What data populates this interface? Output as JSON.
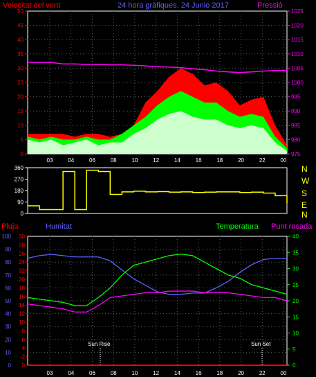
{
  "header": {
    "title_left": "Velocitat del vent",
    "title_center": "24 hora gràfiques. 24 Junio 2017",
    "title_right": "Pressió"
  },
  "panel2_labels": {
    "nwsen": [
      "N",
      "W",
      "S",
      "E",
      "N"
    ]
  },
  "panel3_header": {
    "pluja": "Pluja",
    "humitat": "Humitat",
    "temperatura": "Temperatura",
    "punt_rosada": "Punt rosada"
  },
  "sun": {
    "rise_label": "Sun Rise",
    "set_label": "Sun Set"
  },
  "colors": {
    "red": "#ff0000",
    "blue": "#6060ff",
    "magenta": "#ff00ff",
    "green": "#00ff00",
    "yellow": "#ffff00",
    "pale": "#ccffcc",
    "axis": "#ffffff",
    "grid": "#606060"
  },
  "chart_data": [
    {
      "type": "area",
      "name": "wind-pressure",
      "title": "24 hora gràfiques. 24 Junio 2017",
      "ylabel_left": "Velocitat del vent",
      "ylabel_right": "Pressió",
      "ylim_left": [
        0,
        50
      ],
      "ylim_right": [
        975,
        1025
      ],
      "y_ticks_left": [
        "0",
        "5",
        "10",
        "15",
        "20",
        "25",
        "30",
        "35",
        "40",
        "45",
        "50"
      ],
      "y_ticks_right": [
        "975",
        "980",
        "985",
        "990",
        "995",
        "1000",
        "1005",
        "1010",
        "1015",
        "1020",
        "1025"
      ],
      "x_ticks": [
        "03",
        "04",
        "06",
        "08",
        "10",
        "12",
        "14",
        "16",
        "18",
        "20",
        "22",
        "00"
      ],
      "grid": true,
      "x": [
        "02",
        "03",
        "04",
        "05",
        "06",
        "07",
        "08",
        "09",
        "10",
        "11",
        "12",
        "13",
        "14",
        "15",
        "16",
        "17",
        "18",
        "19",
        "20",
        "21",
        "22",
        "23",
        "00"
      ],
      "series": [
        {
          "name": "gust",
          "color": "#ff0000",
          "values": [
            7,
            7,
            7,
            7,
            6,
            7,
            7,
            6,
            7,
            10,
            18,
            22,
            27,
            30,
            28,
            24,
            25,
            22,
            17,
            19,
            20,
            10,
            3
          ]
        },
        {
          "name": "average",
          "color": "#00ff00",
          "values": [
            6,
            5,
            6,
            5,
            5,
            6,
            5,
            5,
            7,
            10,
            13,
            17,
            20,
            22,
            20,
            18,
            18,
            15,
            13,
            14,
            13,
            6,
            2
          ]
        },
        {
          "name": "speed",
          "color": "#ccffcc",
          "values": [
            5,
            4,
            5,
            3,
            4,
            5,
            3,
            4,
            4,
            7,
            9,
            12,
            14,
            15,
            13,
            12,
            12,
            10,
            9,
            10,
            9,
            4,
            1
          ]
        },
        {
          "name": "pressure",
          "color": "#ff00ff",
          "values": [
            1007,
            1007,
            1007,
            1006.5,
            1006.5,
            1006.3,
            1006.3,
            1006.2,
            1006.2,
            1006.0,
            1005.8,
            1005.5,
            1005.4,
            1005.2,
            1004.8,
            1004.5,
            1004.0,
            1003.7,
            1003.5,
            1003.7,
            1004,
            1004.2,
            1004.2
          ]
        }
      ]
    },
    {
      "type": "line",
      "name": "wind-direction",
      "ylim": [
        0,
        360
      ],
      "y_ticks": [
        "0",
        "90",
        "180",
        "270",
        "360"
      ],
      "grid": false,
      "x": [
        "02",
        "03",
        "04",
        "05",
        "06",
        "07",
        "08",
        "09",
        "10",
        "11",
        "12",
        "13",
        "14",
        "15",
        "16",
        "17",
        "18",
        "19",
        "20",
        "21",
        "22",
        "23",
        "00"
      ],
      "series": [
        {
          "name": "direction",
          "color": "#ffff00",
          "values": [
            60,
            30,
            30,
            330,
            30,
            340,
            330,
            150,
            170,
            175,
            170,
            172,
            168,
            170,
            165,
            168,
            170,
            170,
            165,
            168,
            160,
            140,
            80
          ]
        }
      ]
    },
    {
      "type": "line",
      "name": "temp-humidity",
      "ylabel_left_outer": "Pluja",
      "ylabel_left_inner": "Humitat",
      "ylabel_right_inner": "Temperatura",
      "ylabel_right_outer": "Punt rosada",
      "ylim_humidity": [
        0,
        100
      ],
      "ylim_rain": [
        0,
        30
      ],
      "ylim_temp": [
        0,
        40
      ],
      "y_ticks_humidity": [
        "0",
        "10",
        "20",
        "30",
        "40",
        "50",
        "60",
        "70",
        "80",
        "90",
        "100"
      ],
      "y_ticks_rain": [
        "0",
        "2",
        "4",
        "6",
        "8",
        "10",
        "12",
        "14",
        "16",
        "18",
        "20",
        "22",
        "24",
        "26",
        "28",
        "30"
      ],
      "y_ticks_temp": [
        "0",
        "5",
        "10",
        "15",
        "20",
        "25",
        "30",
        "35",
        "40"
      ],
      "x_ticks": [
        "03",
        "04",
        "06",
        "08",
        "10",
        "12",
        "14",
        "16",
        "18",
        "20",
        "22",
        "00"
      ],
      "grid": true,
      "x": [
        "02",
        "03",
        "04",
        "05",
        "06",
        "07",
        "08",
        "09",
        "10",
        "11",
        "12",
        "13",
        "14",
        "15",
        "16",
        "17",
        "18",
        "19",
        "20",
        "21",
        "22",
        "23",
        "00"
      ],
      "series": [
        {
          "name": "humitat",
          "color": "#6060ff",
          "values": [
            83,
            85,
            86,
            85,
            84,
            84,
            84,
            81,
            74,
            67,
            62,
            57,
            55,
            55,
            56,
            56,
            60,
            65,
            72,
            78,
            82,
            83,
            83
          ]
        },
        {
          "name": "temperatura",
          "color": "#00ff00",
          "values": [
            21,
            20.5,
            20,
            19.5,
            18.5,
            18.5,
            21,
            24,
            28,
            31,
            32,
            33,
            34,
            34.5,
            34,
            32,
            30,
            28,
            27,
            25,
            24,
            23,
            22
          ]
        },
        {
          "name": "punt_rosada",
          "color": "#ff00ff",
          "values": [
            19,
            18.5,
            18,
            17.5,
            16.5,
            16.5,
            18.5,
            21,
            21.5,
            22,
            22.5,
            22.5,
            23,
            23,
            23,
            22.5,
            22.5,
            22.5,
            22,
            21.5,
            21,
            21,
            20
          ]
        },
        {
          "name": "pluja",
          "color": "#ff0000",
          "values": [
            0,
            0,
            0,
            0,
            0,
            0,
            0,
            0,
            0,
            0,
            0,
            0,
            0,
            0,
            0,
            0,
            0,
            0,
            0,
            0,
            0,
            0,
            0
          ]
        }
      ]
    }
  ]
}
